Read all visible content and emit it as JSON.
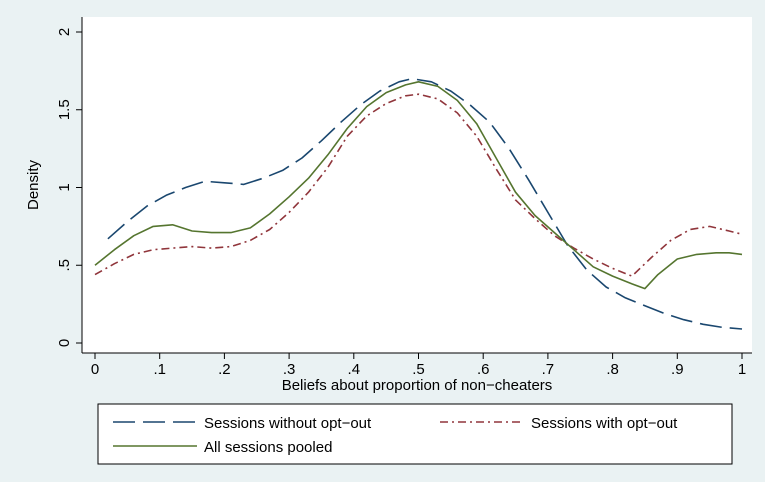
{
  "chart_data": {
    "type": "line",
    "title": "",
    "xlabel": "Beliefs about proportion of non−cheaters",
    "ylabel": "Density",
    "xlim": [
      0,
      1
    ],
    "ylim": [
      0,
      2
    ],
    "x_ticks": [
      0,
      0.1,
      0.2,
      0.3,
      0.4,
      0.5,
      0.6,
      0.7,
      0.8,
      0.9,
      1
    ],
    "x_tick_labels": [
      "0",
      ".1",
      ".2",
      ".3",
      ".4",
      ".5",
      ".6",
      ".7",
      ".8",
      ".9",
      "1"
    ],
    "y_ticks": [
      0,
      0.5,
      1,
      1.5,
      2
    ],
    "y_tick_labels": [
      "0",
      ".5",
      "1",
      "1.5",
      "2"
    ],
    "grid": false,
    "legend_position": "bottom",
    "series": [
      {
        "name": "Sessions without opt−out",
        "color": "#1a476f",
        "dash": "long-dash",
        "x": [
          0.02,
          0.05,
          0.08,
          0.11,
          0.14,
          0.17,
          0.2,
          0.23,
          0.26,
          0.29,
          0.32,
          0.35,
          0.38,
          0.41,
          0.44,
          0.47,
          0.49,
          0.52,
          0.55,
          0.58,
          0.61,
          0.64,
          0.67,
          0.7,
          0.73,
          0.76,
          0.79,
          0.82,
          0.85,
          0.88,
          0.91,
          0.94,
          0.97,
          1.0
        ],
        "values": [
          0.67,
          0.78,
          0.88,
          0.95,
          1.0,
          1.04,
          1.03,
          1.02,
          1.06,
          1.11,
          1.19,
          1.3,
          1.42,
          1.53,
          1.62,
          1.68,
          1.7,
          1.68,
          1.62,
          1.53,
          1.42,
          1.25,
          1.05,
          0.84,
          0.63,
          0.47,
          0.36,
          0.29,
          0.24,
          0.19,
          0.15,
          0.12,
          0.1,
          0.09
        ]
      },
      {
        "name": "Sessions with opt−out",
        "color": "#90353b",
        "dash": "dash-dot",
        "x": [
          0.0,
          0.03,
          0.06,
          0.09,
          0.12,
          0.15,
          0.18,
          0.21,
          0.24,
          0.27,
          0.3,
          0.33,
          0.36,
          0.39,
          0.42,
          0.45,
          0.48,
          0.5,
          0.53,
          0.56,
          0.59,
          0.62,
          0.65,
          0.68,
          0.71,
          0.74,
          0.77,
          0.8,
          0.83,
          0.86,
          0.89,
          0.92,
          0.95,
          0.98,
          1.0
        ],
        "values": [
          0.44,
          0.51,
          0.57,
          0.6,
          0.61,
          0.62,
          0.61,
          0.62,
          0.66,
          0.73,
          0.84,
          0.97,
          1.13,
          1.33,
          1.46,
          1.54,
          1.59,
          1.6,
          1.57,
          1.48,
          1.33,
          1.12,
          0.92,
          0.8,
          0.69,
          0.61,
          0.54,
          0.48,
          0.43,
          0.55,
          0.66,
          0.73,
          0.75,
          0.72,
          0.7
        ]
      },
      {
        "name": "All sessions pooled",
        "color": "#55752f",
        "dash": "solid",
        "x": [
          0.0,
          0.03,
          0.06,
          0.09,
          0.12,
          0.15,
          0.18,
          0.21,
          0.24,
          0.27,
          0.3,
          0.33,
          0.36,
          0.39,
          0.42,
          0.45,
          0.48,
          0.5,
          0.53,
          0.56,
          0.59,
          0.62,
          0.65,
          0.68,
          0.71,
          0.74,
          0.77,
          0.8,
          0.83,
          0.85,
          0.87,
          0.9,
          0.93,
          0.96,
          0.98,
          1.0
        ],
        "values": [
          0.5,
          0.6,
          0.69,
          0.75,
          0.76,
          0.72,
          0.71,
          0.71,
          0.74,
          0.83,
          0.94,
          1.06,
          1.21,
          1.38,
          1.52,
          1.61,
          1.66,
          1.68,
          1.65,
          1.56,
          1.41,
          1.19,
          0.97,
          0.82,
          0.71,
          0.6,
          0.49,
          0.43,
          0.38,
          0.35,
          0.44,
          0.54,
          0.57,
          0.58,
          0.58,
          0.57
        ]
      }
    ]
  }
}
